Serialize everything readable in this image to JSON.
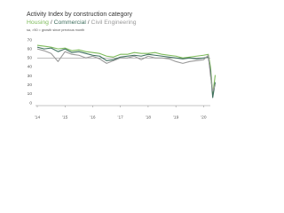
{
  "chart_data": {
    "type": "line",
    "title": "Activity Index by construction category",
    "legend_separator": "/",
    "note": "sa, >50 = growth since previous month",
    "x": [
      2014,
      2014.25,
      2014.5,
      2014.75,
      2015,
      2015.25,
      2015.5,
      2015.75,
      2016,
      2016.25,
      2016.5,
      2016.75,
      2017,
      2017.25,
      2017.5,
      2017.75,
      2018,
      2018.25,
      2018.5,
      2018.75,
      2019,
      2019.25,
      2019.5,
      2019.75,
      2020,
      2020.17,
      2020.25,
      2020.33,
      2020.42
    ],
    "series": [
      {
        "name": "Housing",
        "color": "#7dbb5a",
        "values": [
          64,
          63,
          62,
          60,
          61,
          58,
          59,
          57,
          56,
          55,
          52,
          51,
          54,
          54,
          56,
          55,
          55,
          56,
          54,
          53,
          52,
          50,
          51,
          52,
          53,
          54,
          40,
          9,
          31
        ]
      },
      {
        "name": "Commercial",
        "color": "#3f6f5e",
        "values": [
          62,
          60,
          61,
          57,
          60,
          56,
          57,
          55,
          53,
          52,
          47,
          48,
          51,
          52,
          53,
          52,
          54,
          53,
          52,
          51,
          50,
          49,
          50,
          49,
          50,
          51,
          35,
          6,
          23
        ]
      },
      {
        "name": "Civil Engineering",
        "color": "#9a9a9a",
        "values": [
          60,
          58,
          55,
          46,
          57,
          54,
          53,
          50,
          52,
          49,
          44,
          47,
          50,
          50,
          52,
          48,
          52,
          50,
          50,
          49,
          46,
          44,
          46,
          47,
          48,
          53,
          30,
          13,
          20
        ]
      }
    ],
    "reference_line": 50,
    "xlim": [
      2014,
      2020.5
    ],
    "xticks": [
      {
        "value": 2014,
        "label": "'14"
      },
      {
        "value": 2015,
        "label": "'15"
      },
      {
        "value": 2016,
        "label": "'16"
      },
      {
        "value": 2017,
        "label": "'17"
      },
      {
        "value": 2018,
        "label": "'18"
      },
      {
        "value": 2019,
        "label": "'19"
      },
      {
        "value": 2020,
        "label": "'20"
      }
    ],
    "ylim": [
      0,
      70
    ],
    "yticks": [
      0,
      10,
      20,
      30,
      40,
      50,
      60,
      70
    ]
  }
}
